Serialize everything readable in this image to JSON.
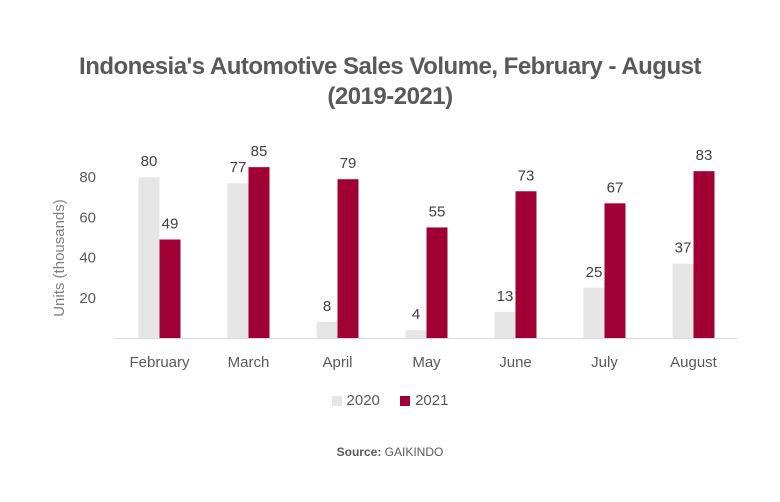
{
  "chart_data": {
    "type": "bar",
    "title": "Indonesia's Automotive Sales Volume, February - August (2019-2021)",
    "title_lines": [
      "Indonesia's Automotive Sales Volume, February - August",
      "(2019-2021)"
    ],
    "xlabel": "",
    "ylabel": "Units (thousands)",
    "ylim": [
      0,
      90
    ],
    "yticks": [
      20,
      40,
      60,
      80
    ],
    "grid": false,
    "legend": "bottom",
    "categories": [
      "February",
      "March",
      "April",
      "May",
      "June",
      "July",
      "August"
    ],
    "series": [
      {
        "name": "2020",
        "color": "#e6e6e6",
        "values": [
          80,
          77,
          8,
          4,
          13,
          25,
          37
        ]
      },
      {
        "name": "2021",
        "color": "#a10034",
        "values": [
          49,
          85,
          79,
          55,
          73,
          67,
          83
        ]
      }
    ],
    "data_labels": true
  },
  "source": {
    "label": "Source:",
    "value": "GAIKINDO"
  }
}
